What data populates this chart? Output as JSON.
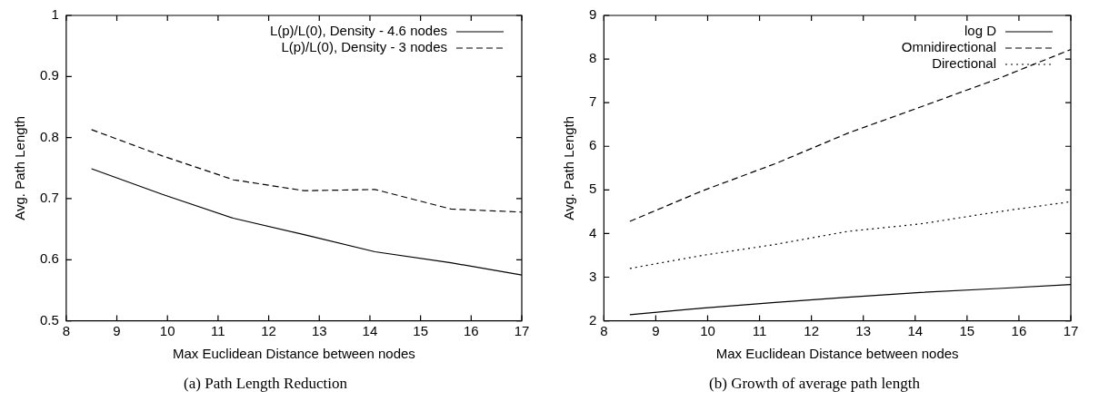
{
  "chart_data": [
    {
      "type": "line",
      "title": "(a) Path Length Reduction",
      "xlabel": "Max Euclidean Distance between nodes",
      "ylabel": "Avg. Path Length",
      "x": [
        8.5,
        9.9,
        11.3,
        12.7,
        14.1,
        15.6,
        17
      ],
      "xlim": [
        8,
        17
      ],
      "xticks": [
        8,
        9,
        10,
        11,
        12,
        13,
        14,
        15,
        16,
        17
      ],
      "ylim": [
        0.5,
        1
      ],
      "yticks": [
        0.5,
        0.6,
        0.7,
        0.8,
        0.9,
        1
      ],
      "legend": "top right",
      "marker": "none",
      "series": [
        {
          "name": "L(p)/L(0), Density - 4.6 nodes",
          "color": "#000000",
          "line_style": "solid",
          "values": [
            0.749,
            0.707,
            0.668,
            0.641,
            0.613,
            0.595,
            0.575
          ]
        },
        {
          "name": "L(p)/L(0), Density - 3 nodes",
          "color": "#000000",
          "line_style": "dashed",
          "values": [
            0.813,
            0.77,
            0.731,
            0.713,
            0.715,
            0.683,
            0.678
          ]
        }
      ]
    },
    {
      "type": "line",
      "title": "(b) Growth of average path length",
      "xlabel": "Max Euclidean Distance between nodes",
      "ylabel": "Avg. Path Length",
      "x": [
        8.5,
        9.9,
        11.3,
        12.7,
        14.1,
        15.6,
        17
      ],
      "xlim": [
        8,
        17
      ],
      "xticks": [
        8,
        9,
        10,
        11,
        12,
        13,
        14,
        15,
        16,
        17
      ],
      "ylim": [
        2,
        9
      ],
      "yticks": [
        2,
        3,
        4,
        5,
        6,
        7,
        8,
        9
      ],
      "legend": "top right",
      "marker": "none",
      "series": [
        {
          "name": "log D",
          "color": "#000000",
          "line_style": "solid",
          "values": [
            2.14,
            2.29,
            2.42,
            2.54,
            2.65,
            2.74,
            2.83
          ]
        },
        {
          "name": "Omnidirectional",
          "color": "#000000",
          "line_style": "dashed",
          "values": [
            4.28,
            4.98,
            5.6,
            6.3,
            6.9,
            7.55,
            8.22
          ]
        },
        {
          "name": "Directional",
          "color": "#000000",
          "line_style": "dotted",
          "values": [
            3.2,
            3.5,
            3.75,
            4.05,
            4.22,
            4.5,
            4.73
          ]
        }
      ]
    }
  ]
}
